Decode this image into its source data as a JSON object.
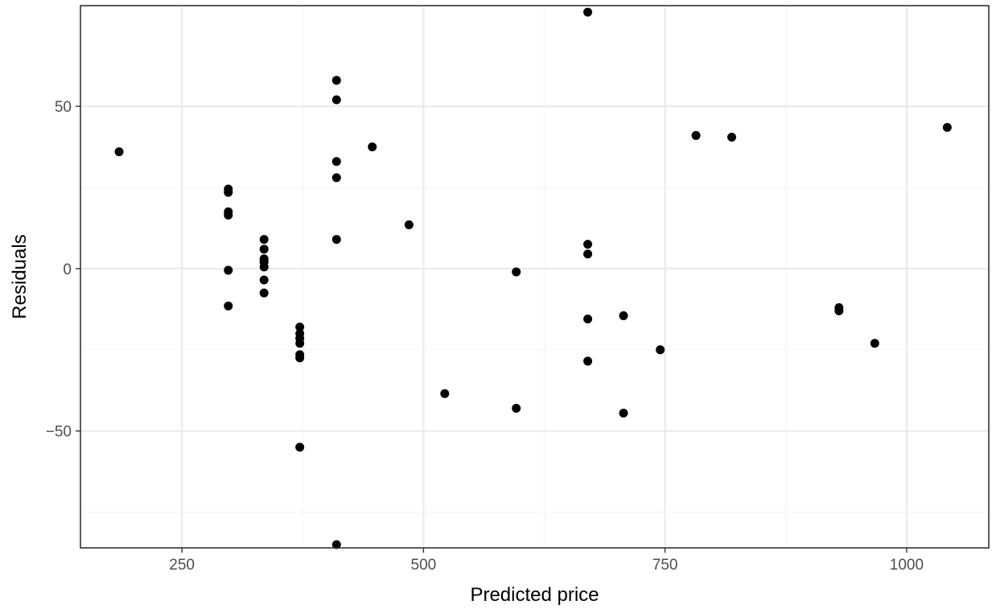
{
  "chart_data": {
    "type": "scatter",
    "title": "",
    "xlabel": "Predicted price",
    "ylabel": "Residuals",
    "xlim": [
      145,
      1085
    ],
    "ylim": [
      -86,
      81
    ],
    "x_ticks": [
      250,
      500,
      750,
      1000
    ],
    "x_tick_labels": [
      "250",
      "500",
      "750",
      "1000"
    ],
    "x_minor": [
      375,
      625,
      875
    ],
    "y_ticks": [
      50,
      0,
      -50
    ],
    "y_tick_labels": [
      "50",
      "0",
      "−50"
    ],
    "y_minor": [
      25,
      -25,
      -75
    ],
    "grid": true,
    "legend": "none",
    "colors": {
      "points": "#000000",
      "grid_major": "#ebebeb",
      "grid_minor": "#f5f5f5",
      "panel_border": "#333333",
      "background": "#ffffff"
    },
    "points": [
      {
        "x": 185,
        "y": 36
      },
      {
        "x": 298,
        "y": 24.5
      },
      {
        "x": 298,
        "y": 23.5
      },
      {
        "x": 298,
        "y": 17.5
      },
      {
        "x": 298,
        "y": 16.5
      },
      {
        "x": 298,
        "y": -0.5
      },
      {
        "x": 298,
        "y": -11.5
      },
      {
        "x": 335,
        "y": 9
      },
      {
        "x": 335,
        "y": 6
      },
      {
        "x": 335,
        "y": 3
      },
      {
        "x": 335,
        "y": 2
      },
      {
        "x": 335,
        "y": 0.5
      },
      {
        "x": 335,
        "y": -3.5
      },
      {
        "x": 335,
        "y": -7.5
      },
      {
        "x": 372,
        "y": -18
      },
      {
        "x": 372,
        "y": -20
      },
      {
        "x": 372,
        "y": -21.5
      },
      {
        "x": 372,
        "y": -23
      },
      {
        "x": 372,
        "y": -26.5
      },
      {
        "x": 372,
        "y": -27.5
      },
      {
        "x": 372,
        "y": -55
      },
      {
        "x": 410,
        "y": 58
      },
      {
        "x": 410,
        "y": 52
      },
      {
        "x": 410,
        "y": 33
      },
      {
        "x": 410,
        "y": 28
      },
      {
        "x": 410,
        "y": 9
      },
      {
        "x": 410,
        "y": -85
      },
      {
        "x": 447,
        "y": 37.5
      },
      {
        "x": 485,
        "y": 13.5
      },
      {
        "x": 522,
        "y": -38.5
      },
      {
        "x": 596,
        "y": -1
      },
      {
        "x": 596,
        "y": -43
      },
      {
        "x": 670,
        "y": 79
      },
      {
        "x": 670,
        "y": 7.5
      },
      {
        "x": 670,
        "y": 4.5
      },
      {
        "x": 670,
        "y": -15.5
      },
      {
        "x": 670,
        "y": -28.5
      },
      {
        "x": 707,
        "y": -14.5
      },
      {
        "x": 707,
        "y": -44.5
      },
      {
        "x": 745,
        "y": -25
      },
      {
        "x": 782,
        "y": 41
      },
      {
        "x": 819,
        "y": 40.5
      },
      {
        "x": 930,
        "y": -12
      },
      {
        "x": 930,
        "y": -13
      },
      {
        "x": 967,
        "y": -23
      },
      {
        "x": 1042,
        "y": 43.5
      }
    ]
  }
}
